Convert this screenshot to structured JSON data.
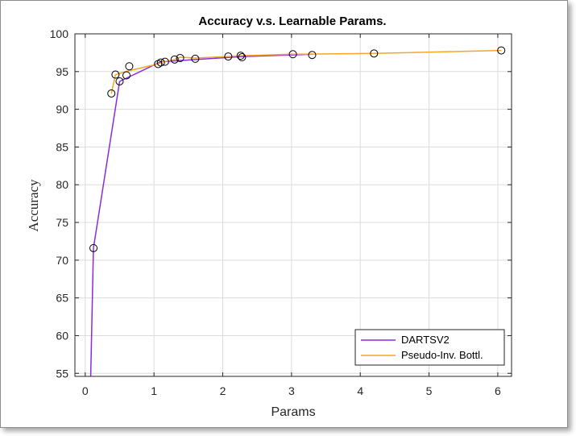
{
  "chart_data": {
    "type": "line",
    "title": "Accuracy v.s. Learnable Params.",
    "xlabel": "Params",
    "ylabel": "Accuracy",
    "xlim": [
      -0.15,
      6.2
    ],
    "ylim": [
      54.6,
      100
    ],
    "xticks": [
      0,
      1,
      2,
      3,
      4,
      5,
      6
    ],
    "yticks": [
      55,
      60,
      65,
      70,
      75,
      80,
      85,
      90,
      95,
      100
    ],
    "grid": true,
    "legend_position": "bottom-right",
    "series": [
      {
        "name": "DARTSV2",
        "color": "#8a2be2",
        "x": [
          0.08,
          0.12,
          0.5,
          1.1,
          2.3,
          3.3
        ],
        "y": [
          54.6,
          71.6,
          93.7,
          96.3,
          97.0,
          97.3
        ]
      },
      {
        "name": "Pseudo-Inv. Bottl.",
        "color": "#f5a623",
        "x": [
          0.38,
          0.44,
          0.63,
          1.06,
          1.14,
          1.3,
          1.38,
          1.6,
          2.08,
          2.26,
          3.02,
          4.2,
          6.05
        ],
        "y": [
          92.1,
          94.6,
          95.1,
          96.0,
          96.3,
          96.6,
          96.9,
          96.8,
          97.0,
          97.1,
          97.3,
          97.4,
          97.8
        ]
      }
    ],
    "markers": {
      "color": "#000000",
      "x": [
        0.12,
        0.38,
        0.44,
        0.5,
        0.6,
        0.64,
        1.06,
        1.1,
        1.16,
        1.3,
        1.38,
        1.6,
        2.08,
        2.26,
        2.28,
        3.02,
        3.3,
        4.2,
        6.05
      ],
      "y": [
        71.6,
        92.1,
        94.6,
        93.7,
        94.5,
        95.7,
        96.0,
        96.2,
        96.3,
        96.6,
        96.8,
        96.7,
        97.0,
        97.1,
        96.9,
        97.3,
        97.2,
        97.4,
        97.8
      ]
    }
  }
}
